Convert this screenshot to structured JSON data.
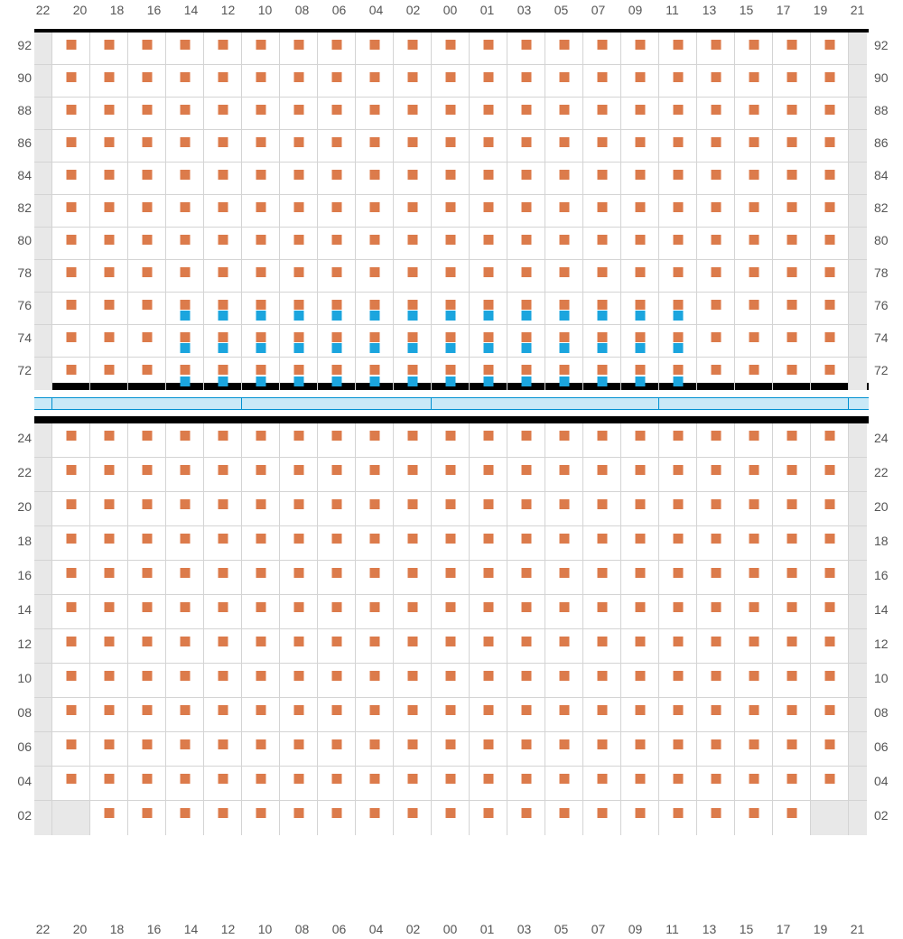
{
  "type": "seating-chart",
  "background_color": "#ffffff",
  "grid_line_color": "#d4d4d4",
  "edge_cell_color": "#e8e8e8",
  "label_color": "#555555",
  "label_fontsize": 14,
  "marker": {
    "orange_color": "#dc7b4b",
    "blue_color": "#1ba5de",
    "size": 11
  },
  "columns": [
    "22",
    "20",
    "18",
    "16",
    "14",
    "12",
    "10",
    "08",
    "06",
    "04",
    "02",
    "00",
    "01",
    "03",
    "05",
    "07",
    "09",
    "11",
    "13",
    "15",
    "17",
    "19",
    "21"
  ],
  "top_section": {
    "border_top": "4px solid #000000",
    "border_bottom": "8px solid #000000",
    "rows": [
      "92",
      "90",
      "88",
      "86",
      "84",
      "82",
      "80",
      "78",
      "76",
      "74",
      "72"
    ],
    "orange_col_indices": [
      1,
      2,
      3,
      4,
      5,
      6,
      7,
      8,
      9,
      10,
      11,
      12,
      13,
      14,
      15,
      16,
      17,
      18,
      19,
      20,
      21
    ],
    "blue_rows": [
      "76",
      "74",
      "72"
    ],
    "blue_col_indices": [
      4,
      5,
      6,
      7,
      8,
      9,
      10,
      11,
      12,
      13,
      14,
      15,
      16,
      17
    ]
  },
  "bottom_section": {
    "border_top": "8px solid #000000",
    "rows": [
      "24",
      "22",
      "20",
      "18",
      "16",
      "14",
      "12",
      "10",
      "08",
      "06",
      "04",
      "02"
    ],
    "orange_col_indices_default": [
      1,
      2,
      3,
      4,
      5,
      6,
      7,
      8,
      9,
      10,
      11,
      12,
      13,
      14,
      15,
      16,
      17,
      18,
      19,
      20,
      21
    ],
    "corner_mask": {
      "24": {
        "edge_left": [
          0
        ],
        "edge_right": [
          22
        ]
      },
      "04": {
        "edge_left": [
          0
        ],
        "edge_right": [
          22
        ]
      },
      "02": {
        "edge_left": [
          0,
          1
        ],
        "edge_right": [
          21,
          22
        ],
        "orange_cols": [
          2,
          3,
          4,
          5,
          6,
          7,
          8,
          9,
          10,
          11,
          12,
          13,
          14,
          15,
          16,
          17,
          18,
          19,
          20
        ]
      }
    }
  },
  "divider": {
    "background": "#c9e9f7",
    "border_color": "#0090d0",
    "height": 14,
    "segments_width": [
      20,
      210,
      210,
      252,
      210,
      22
    ]
  }
}
